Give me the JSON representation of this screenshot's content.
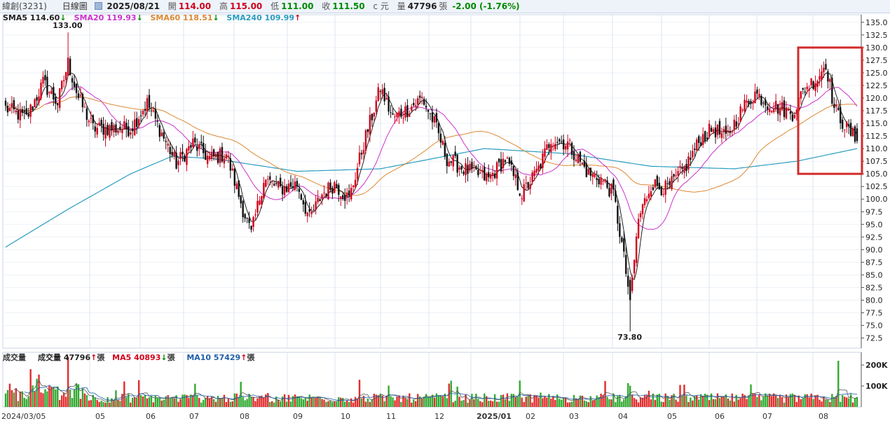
{
  "header": {
    "stock_name": "緯創(3231)",
    "period": "日線圖",
    "date": "2025/08/21",
    "open_label": "開",
    "open": "114.00",
    "high_label": "高",
    "high": "115.00",
    "low_label": "低",
    "low": "111.00",
    "close_label": "收",
    "close": "111.50",
    "unit": "c 元",
    "volume_label": "量",
    "volume": "47796",
    "volume_unit": "張",
    "change": "-2.00 (-1.76%)"
  },
  "price_legend": [
    {
      "label": "SMA5",
      "value": "114.60",
      "arrow": "↓",
      "color": "#222222"
    },
    {
      "label": "SMA20",
      "value": "119.93",
      "arrow": "↓",
      "color": "#cc33cc"
    },
    {
      "label": "SMA60",
      "value": "118.51",
      "arrow": "↓",
      "color": "#dd8833"
    },
    {
      "label": "SMA240",
      "value": "109.99",
      "arrow": "↑",
      "color": "#2a9dc0"
    }
  ],
  "volume_legend": {
    "title": "成交量",
    "items": [
      {
        "label": "成交量",
        "value": "47796",
        "arrow": "↑",
        "unit": "張",
        "color": "#222222"
      },
      {
        "label": "MA5",
        "value": "40893",
        "arrow": "↓",
        "unit": "張",
        "color": "#d0021b"
      },
      {
        "label": "MA10",
        "value": "57429",
        "arrow": "↑",
        "unit": "張",
        "color": "#1f5fa8"
      }
    ]
  },
  "colors": {
    "up": "#d0021b",
    "down": "#111111",
    "vol_up": "#e02d2d",
    "vol_down": "#33aa33",
    "box": "#d22b2b"
  },
  "chart_data": {
    "type": "candlestick",
    "y_ticks": [
      "135.0",
      "132.5",
      "130.0",
      "127.5",
      "125.0",
      "122.5",
      "120.0",
      "117.5",
      "115.0",
      "112.5",
      "110.0",
      "107.5",
      "105.0",
      "102.5",
      "100.0",
      "97.5",
      "95.0",
      "92.5",
      "90.0",
      "87.5",
      "85.0",
      "82.5",
      "80.0",
      "77.5",
      "75.0",
      "72.5"
    ],
    "ylim": [
      70.5,
      136.5
    ],
    "x_labels": [
      "2024/03/05",
      "05",
      "06",
      "07",
      "08",
      "09",
      "10",
      "11",
      "12",
      "2025/01",
      "02",
      "03",
      "04",
      "05",
      "06",
      "07",
      "08"
    ],
    "annotations": [
      {
        "text": "133.00",
        "x": "2024/03",
        "y": 133.0
      },
      {
        "text": "73.80",
        "x": "2025/04",
        "y": 73.8
      }
    ],
    "price_anchors": [
      [
        0,
        118
      ],
      [
        10,
        116
      ],
      [
        18,
        123
      ],
      [
        25,
        119
      ],
      [
        30,
        127
      ],
      [
        35,
        120
      ],
      [
        42,
        114
      ],
      [
        50,
        114
      ],
      [
        60,
        114
      ],
      [
        68,
        119
      ],
      [
        75,
        113
      ],
      [
        82,
        107
      ],
      [
        90,
        111
      ],
      [
        98,
        108
      ],
      [
        106,
        109
      ],
      [
        114,
        98
      ],
      [
        118,
        93
      ],
      [
        124,
        104
      ],
      [
        132,
        102
      ],
      [
        140,
        103
      ],
      [
        146,
        96
      ],
      [
        152,
        101
      ],
      [
        158,
        103
      ],
      [
        165,
        100
      ],
      [
        172,
        111
      ],
      [
        180,
        122
      ],
      [
        186,
        116
      ],
      [
        194,
        118
      ],
      [
        200,
        120
      ],
      [
        206,
        115
      ],
      [
        212,
        108
      ],
      [
        220,
        106
      ],
      [
        232,
        104
      ],
      [
        240,
        108
      ],
      [
        248,
        101
      ],
      [
        256,
        106
      ],
      [
        262,
        112
      ],
      [
        270,
        111
      ],
      [
        280,
        105
      ],
      [
        286,
        104
      ],
      [
        292,
        101
      ],
      [
        296,
        91
      ],
      [
        300,
        80
      ],
      [
        304,
        96
      ],
      [
        310,
        103
      ],
      [
        318,
        102
      ],
      [
        326,
        106
      ],
      [
        334,
        112
      ],
      [
        340,
        114
      ],
      [
        346,
        112
      ],
      [
        354,
        118
      ],
      [
        360,
        121
      ],
      [
        366,
        119
      ],
      [
        372,
        118
      ],
      [
        378,
        117
      ],
      [
        384,
        122
      ],
      [
        390,
        124
      ],
      [
        394,
        127
      ],
      [
        398,
        118
      ],
      [
        404,
        114
      ],
      [
        409,
        111.5
      ]
    ],
    "sma240_anchors": [
      [
        0,
        90.5
      ],
      [
        30,
        98
      ],
      [
        60,
        105
      ],
      [
        80,
        108.5
      ],
      [
        100,
        108
      ],
      [
        140,
        105.5
      ],
      [
        180,
        106
      ],
      [
        230,
        110
      ],
      [
        270,
        109
      ],
      [
        310,
        106.5
      ],
      [
        350,
        106
      ],
      [
        380,
        107.5
      ],
      [
        409,
        110
      ]
    ],
    "volume_ticks": [
      "200K",
      "100K"
    ],
    "volume_ymax": 260000,
    "highlight_box": {
      "x_start": "2025/07 late",
      "x_end": "2025/08/21",
      "y_low": 105.0,
      "y_high": 130.0
    }
  }
}
